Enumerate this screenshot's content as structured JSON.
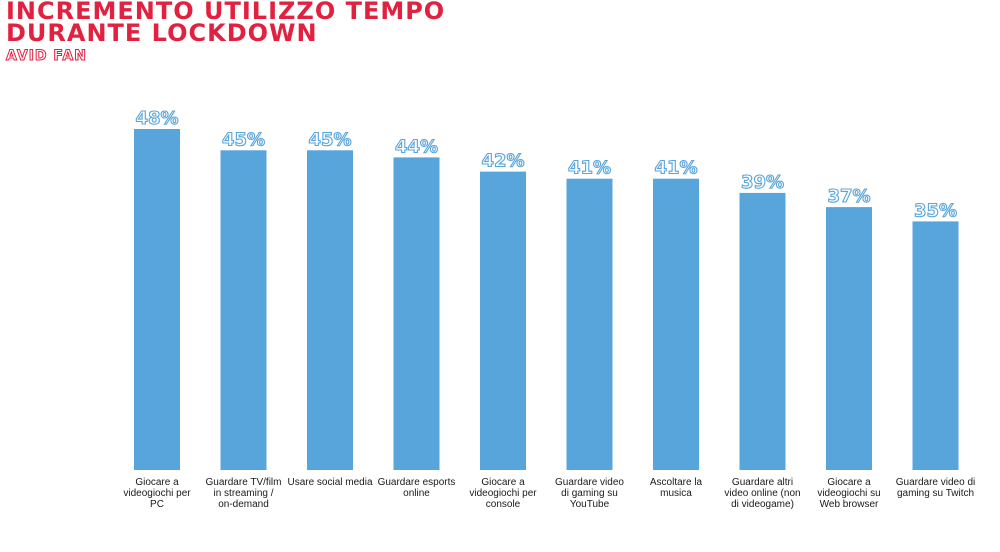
{
  "header": {
    "title_lines": [
      "INCREMENTO UTILIZZO TEMPO",
      "DURANTE LOCKDOWN"
    ],
    "subtitle": "AVID FAN"
  },
  "colors": {
    "title": "#e2203f",
    "bar": "#58a5db"
  },
  "chart_data": {
    "type": "bar",
    "title": "INCREMENTO UTILIZZO TEMPO DURANTE LOCKDOWN",
    "subtitle": "AVID FAN",
    "categories": [
      [
        "Giocare a",
        "videogiochi per",
        "PC"
      ],
      [
        "Guardare TV/film",
        "in streaming /",
        "on-demand"
      ],
      [
        "Usare social media"
      ],
      [
        "Guardare esports",
        "online"
      ],
      [
        "Giocare a",
        "videogiochi per",
        "console"
      ],
      [
        "Guardare video",
        "di gaming su",
        "YouTube"
      ],
      [
        "Ascoltare la",
        "musica"
      ],
      [
        "Guardare altri",
        "video online (non",
        "di videogame)"
      ],
      [
        "Giocare a",
        "videogiochi su",
        "Web browser"
      ],
      [
        "Guardare video di",
        "gaming su Twitch"
      ]
    ],
    "values": [
      48,
      45,
      45,
      44,
      42,
      41,
      41,
      39,
      37,
      35
    ],
    "value_labels": [
      "48%",
      "45%",
      "45%",
      "44%",
      "42%",
      "41%",
      "41%",
      "39%",
      "37%",
      "35%"
    ],
    "value_unit": "%",
    "xlabel": "",
    "ylabel": "",
    "ylim": [
      0,
      48
    ],
    "grid": false,
    "legend": "none"
  }
}
